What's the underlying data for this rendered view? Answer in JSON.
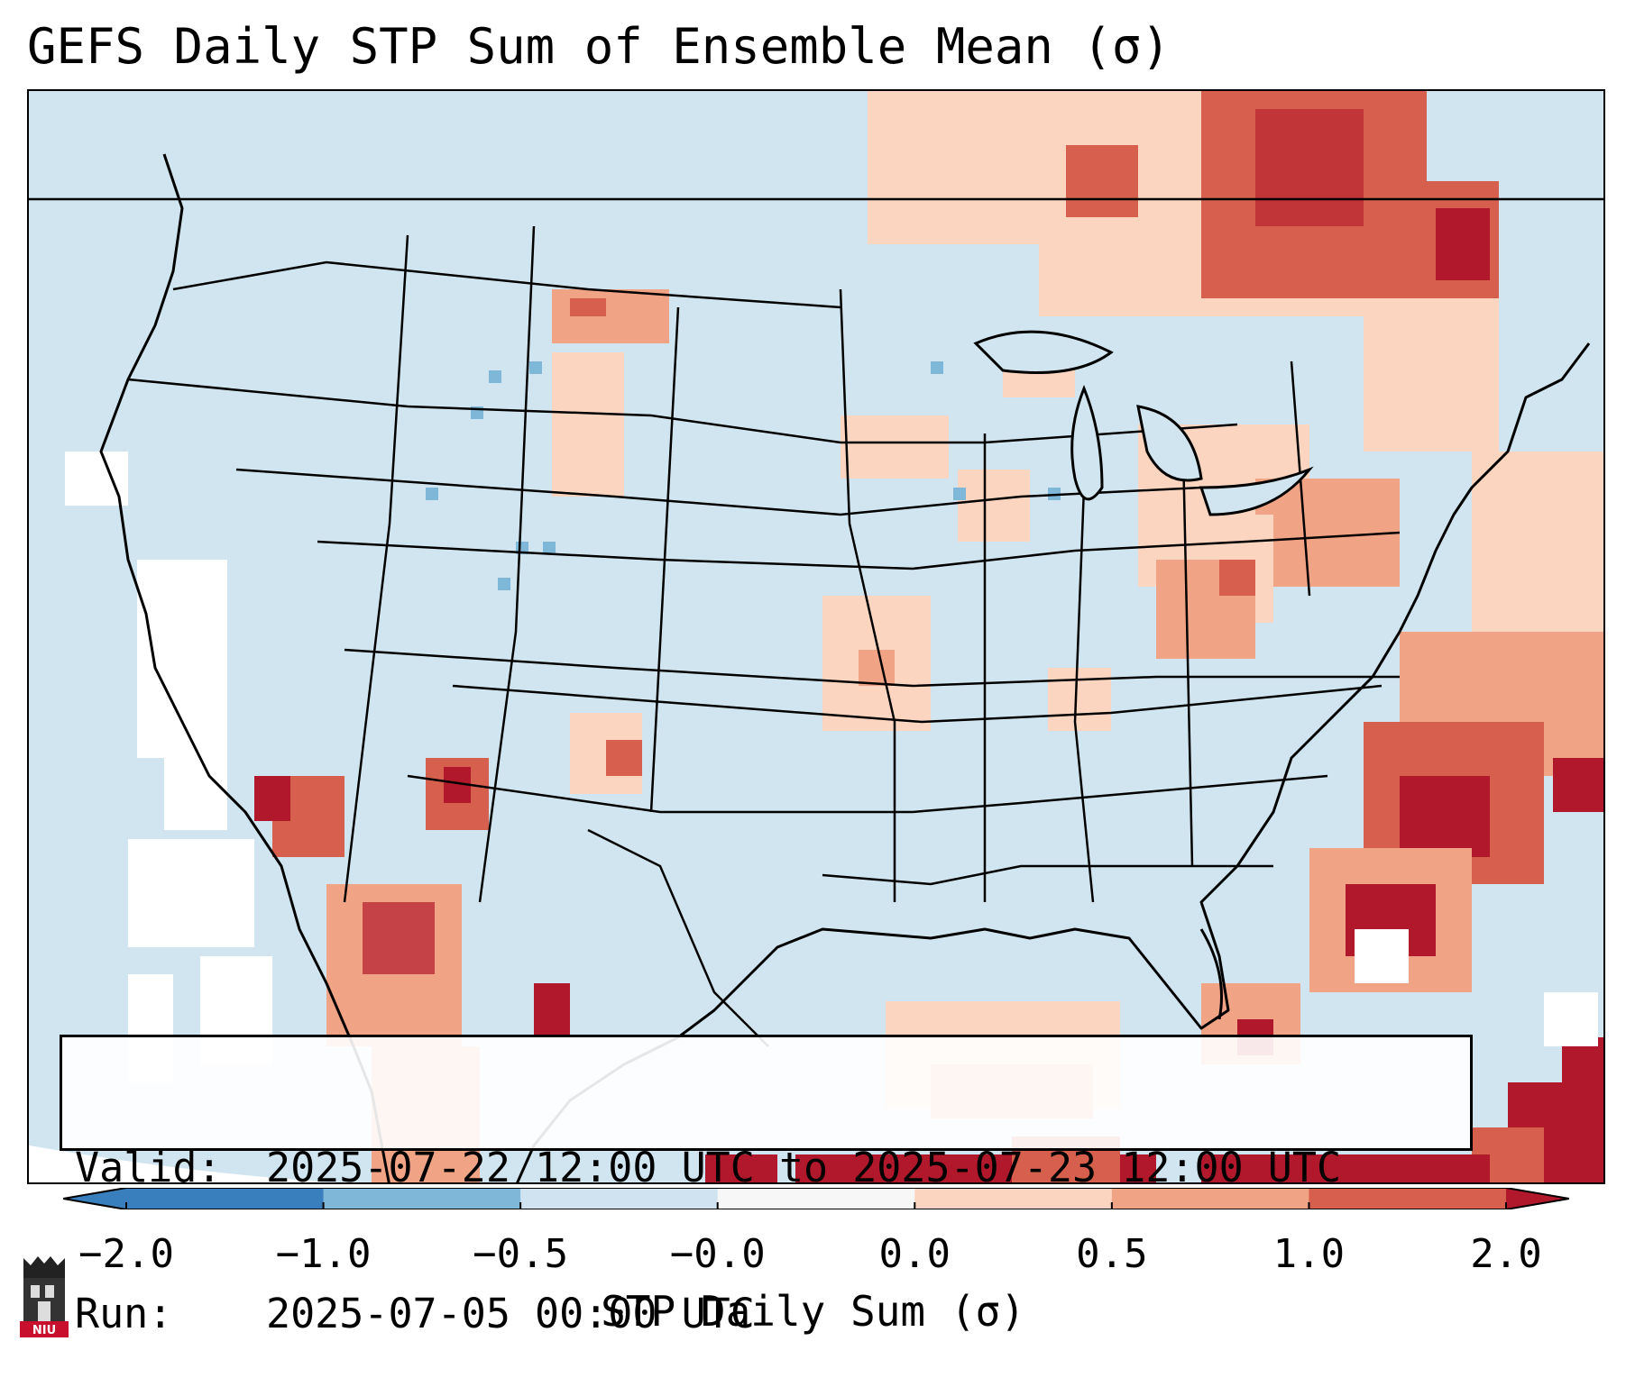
{
  "title": "GEFS Daily STP Sum of Ensemble Mean (σ)",
  "info": {
    "valid_label": "Valid:",
    "valid_value": "2025-07-22 12:00 UTC to 2025-07-23 12:00 UTC",
    "run_label": "Run:",
    "run_value": "2025-07-05 00:00 UTC"
  },
  "colorbar": {
    "label": "STP Daily Sum (σ)",
    "ticks": [
      "−2.0",
      "−1.0",
      "−0.5",
      "−0.0",
      "0.0",
      "0.5",
      "1.0",
      "2.0"
    ],
    "colors": [
      "#3a7fbd",
      "#7fb7d8",
      "#cfe4f0",
      "#f7f7f7",
      "#fbd5c0",
      "#f1a385",
      "#d6604d",
      "#b2182b"
    ],
    "extend": "both"
  },
  "map": {
    "region": "Contiguous United States, southern Canada, northern Mexico",
    "ocean_color": "#d1e5f0",
    "land_color": "#d1e5f0"
  },
  "logo": {
    "text": "NIU"
  }
}
